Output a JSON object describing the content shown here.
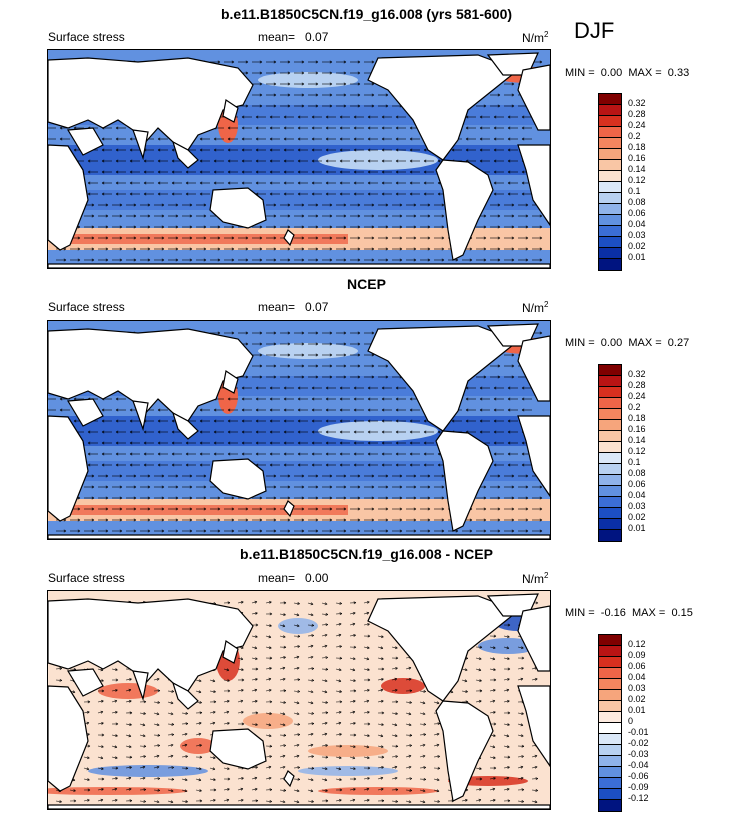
{
  "season": "DJF",
  "unit": "N/m",
  "unit_sup": "2",
  "panels": [
    {
      "title": "b.e11.B1850C5CN.f19_g16.008 (yrs 581-600)",
      "variable": "Surface stress",
      "mean_label": "mean=",
      "mean_value": "0.07",
      "min_label": "MIN =",
      "min_value": "0.00",
      "max_label": "MAX =",
      "max_value": "0.33",
      "colorbar_levels": [
        "0.32",
        "0.28",
        "0.24",
        "0.2",
        "0.18",
        "0.16",
        "0.14",
        "0.12",
        "0.1",
        "0.08",
        "0.06",
        "0.04",
        "0.03",
        "0.02",
        "0.01"
      ],
      "colorbar_colors": [
        "#7f0000",
        "#b81414",
        "#d7301f",
        "#ef6548",
        "#f4855f",
        "#f6a57c",
        "#f9c6a5",
        "#fbe2d0",
        "#dbe8f8",
        "#b8d1f1",
        "#8fb3ea",
        "#6191e0",
        "#3b6ed6",
        "#1c4fc4",
        "#0a2fa6",
        "#001480"
      ]
    },
    {
      "title": "NCEP",
      "variable": "Surface stress",
      "mean_label": "mean=",
      "mean_value": "0.07",
      "min_label": "MIN =",
      "min_value": "0.00",
      "max_label": "MAX =",
      "max_value": "0.27",
      "colorbar_levels": [
        "0.32",
        "0.28",
        "0.24",
        "0.2",
        "0.18",
        "0.16",
        "0.14",
        "0.12",
        "0.1",
        "0.08",
        "0.06",
        "0.04",
        "0.03",
        "0.02",
        "0.01"
      ],
      "colorbar_colors": [
        "#7f0000",
        "#b81414",
        "#d7301f",
        "#ef6548",
        "#f4855f",
        "#f6a57c",
        "#f9c6a5",
        "#fbe2d0",
        "#dbe8f8",
        "#b8d1f1",
        "#8fb3ea",
        "#6191e0",
        "#3b6ed6",
        "#1c4fc4",
        "#0a2fa6",
        "#001480"
      ]
    },
    {
      "title": "b.e11.B1850C5CN.f19_g16.008 - NCEP",
      "variable": "Surface stress",
      "mean_label": "mean=",
      "mean_value": "0.00",
      "min_label": "MIN =",
      "min_value": "-0.16",
      "max_label": "MAX =",
      "max_value": "0.15",
      "colorbar_levels": [
        "0.12",
        "0.09",
        "0.06",
        "0.04",
        "0.03",
        "0.02",
        "0.01",
        "0",
        "-0.01",
        "-0.02",
        "-0.03",
        "-0.04",
        "-0.06",
        "-0.09",
        "-0.12"
      ],
      "colorbar_colors": [
        "#7f0000",
        "#b81414",
        "#d7301f",
        "#ef6548",
        "#f4855f",
        "#f6a57c",
        "#f9c6a5",
        "#fdebe0",
        "#ffffff",
        "#dbe8f8",
        "#b8d1f1",
        "#8fb3ea",
        "#6191e0",
        "#3b6ed6",
        "#1c4fc4",
        "#001480"
      ]
    }
  ]
}
